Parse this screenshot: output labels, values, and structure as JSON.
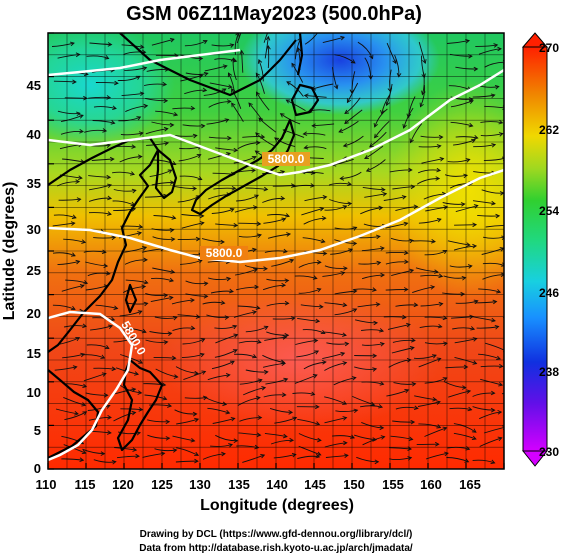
{
  "title": "GSM 06Z11May2023 (500.0hPa)",
  "axes": {
    "xlabel": "Longitude (degrees)",
    "ylabel": "Latitude  (degrees)",
    "xticks": [
      "110",
      "115",
      "120",
      "125",
      "130",
      "135",
      "140",
      "145",
      "150",
      "155",
      "160",
      "165"
    ],
    "yticks": [
      "0",
      "5",
      "10",
      "15",
      "20",
      "25",
      "30",
      "35",
      "40",
      "45"
    ]
  },
  "colorbar": {
    "ticks": [
      "270",
      "262",
      "254",
      "246",
      "238",
      "230"
    ],
    "colors": [
      "#d400ff",
      "#1030e0",
      "#18a8ff",
      "#18e0b0",
      "#20d040",
      "#a0d820",
      "#f0d800",
      "#f09000",
      "#f04010",
      "#ff2800"
    ]
  },
  "contours": [
    {
      "label": "5800.0"
    },
    {
      "label": "5800.0"
    },
    {
      "label": "5800.0"
    }
  ],
  "credits": {
    "line1": "Drawing by DCL (https://www.gfd-dennou.org/library/dcl/)",
    "line2": "Data from http://database.rish.kyoto-u.ac.jp/arch/jmadata/"
  },
  "chart_data": {
    "type": "heatmap",
    "title": "GSM 06Z11May2023 (500.0hPa)",
    "xlabel": "Longitude (degrees)",
    "ylabel": "Latitude  (degrees)",
    "xlim": [
      110,
      170
    ],
    "ylim": [
      0,
      50
    ],
    "color_range": [
      230,
      270
    ],
    "colorbar_ticks": [
      270,
      262,
      254,
      246,
      238,
      230
    ],
    "contour_levels": [
      5800.0
    ],
    "overlays": [
      "streamlines",
      "coastlines",
      "grid"
    ]
  }
}
